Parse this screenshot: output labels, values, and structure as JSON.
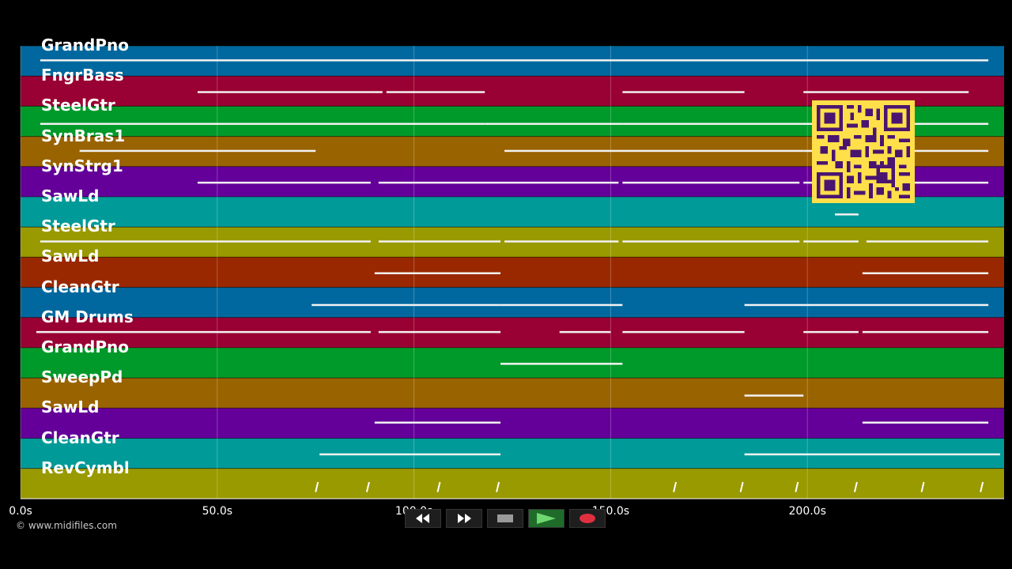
{
  "tracks": [
    {
      "name": "GrandPno",
      "color": "#00689e"
    },
    {
      "name": "FngrBass",
      "color": "#990033"
    },
    {
      "name": "SteelGtr",
      "color": "#009a2a"
    },
    {
      "name": "SynBras1",
      "color": "#996300"
    },
    {
      "name": "SynStrg1",
      "color": "#640099"
    },
    {
      "name": "SawLd",
      "color": "#009a99"
    },
    {
      "name": "SteelGtr",
      "color": "#999900"
    },
    {
      "name": "SawLd",
      "color": "#992800"
    },
    {
      "name": "CleanGtr",
      "color": "#00689e"
    },
    {
      "name": "GM Drums",
      "color": "#990033"
    },
    {
      "name": "GrandPno",
      "color": "#009a2a"
    },
    {
      "name": "SweepPd",
      "color": "#996300"
    },
    {
      "name": "SawLd",
      "color": "#640099"
    },
    {
      "name": "CleanGtr",
      "color": "#009a99"
    },
    {
      "name": "RevCymbl",
      "color": "#999900"
    }
  ],
  "time_ticks": [
    "0.0s",
    "50.0s",
    "100.0s",
    "150.0s",
    "200.0s"
  ],
  "time_axis": {
    "min_seconds": 0,
    "max_seconds": 250
  },
  "copyright": "© www.midifiles.com",
  "transport": {
    "rewind_icon": "rewind-icon",
    "fast_forward_icon": "fast-forward-icon",
    "stop_icon": "stop-icon",
    "play_icon": "play-icon",
    "record_icon": "record-icon"
  },
  "note_segments": [
    [
      [
        5,
        246
      ]
    ],
    [
      [
        45,
        92
      ],
      [
        93,
        118
      ],
      [
        153,
        184
      ],
      [
        199,
        241
      ]
    ],
    [
      [
        5,
        118
      ],
      [
        118,
        153
      ],
      [
        153,
        246
      ]
    ],
    [
      [
        15,
        75
      ],
      [
        123,
        199
      ],
      [
        199,
        246
      ]
    ],
    [
      [
        45,
        89
      ],
      [
        91,
        152
      ],
      [
        153,
        168
      ],
      [
        168,
        198
      ],
      [
        199,
        246
      ]
    ],
    [
      [
        207,
        213
      ]
    ],
    [
      [
        5,
        89
      ],
      [
        91,
        122
      ],
      [
        123,
        152
      ],
      [
        153,
        198
      ],
      [
        199,
        213
      ],
      [
        215,
        246
      ]
    ],
    [
      [
        90,
        122
      ],
      [
        214,
        246
      ]
    ],
    [
      [
        74,
        122
      ],
      [
        122,
        153
      ],
      [
        184,
        246
      ]
    ],
    [
      [
        4,
        89
      ],
      [
        91,
        122
      ],
      [
        137,
        150
      ],
      [
        153,
        184
      ],
      [
        199,
        213
      ],
      [
        214,
        246
      ]
    ],
    [
      [
        122,
        153
      ]
    ],
    [
      [
        184,
        199
      ]
    ],
    [
      [
        90,
        122
      ],
      [
        214,
        246
      ]
    ],
    [
      [
        76,
        122
      ],
      [
        184,
        249
      ]
    ],
    [
      [
        75,
        76
      ],
      [
        88,
        89
      ],
      [
        106,
        107
      ],
      [
        121,
        122
      ],
      [
        166,
        167
      ],
      [
        183,
        184
      ],
      [
        197,
        198
      ],
      [
        212,
        213
      ],
      [
        229,
        230
      ],
      [
        244,
        245
      ]
    ]
  ]
}
